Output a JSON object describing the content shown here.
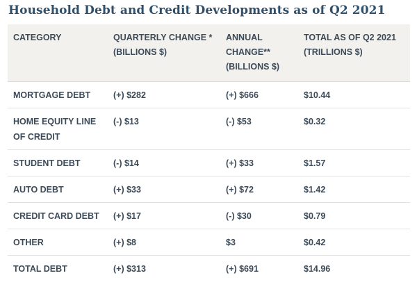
{
  "title": "Household Debt and Credit Developments as of Q2 2021",
  "table": {
    "headers": [
      "CATEGORY",
      "QUARTERLY CHANGE * (BILLIONS $)",
      "ANNUAL CHANGE** (BILLIONS $)",
      "TOTAL AS OF Q2 2021 (TRILLIONS $)"
    ],
    "rows": [
      {
        "category": "MORTGAGE DEBT",
        "quarterly": "(+) $282",
        "annual": "(+) $666",
        "total": "$10.44"
      },
      {
        "category": "HOME EQUITY LINE OF CREDIT",
        "quarterly": "(-) $13",
        "annual": "(-) $53",
        "total": "$0.32"
      },
      {
        "category": "STUDENT DEBT",
        "quarterly": "(-) $14",
        "annual": "(+) $33",
        "total": "$1.57"
      },
      {
        "category": "AUTO DEBT",
        "quarterly": "(+) $33",
        "annual": "(+) $72",
        "total": "$1.42"
      },
      {
        "category": "CREDIT CARD DEBT",
        "quarterly": "(+) $17",
        "annual": "(-) $30",
        "total": "$0.79"
      },
      {
        "category": "OTHER",
        "quarterly": "(+) $8",
        "annual": "$3",
        "total": "$0.42"
      },
      {
        "category": "TOTAL DEBT",
        "quarterly": "(+) $313",
        "annual": "(+) $691",
        "total": "$14.96"
      }
    ]
  }
}
